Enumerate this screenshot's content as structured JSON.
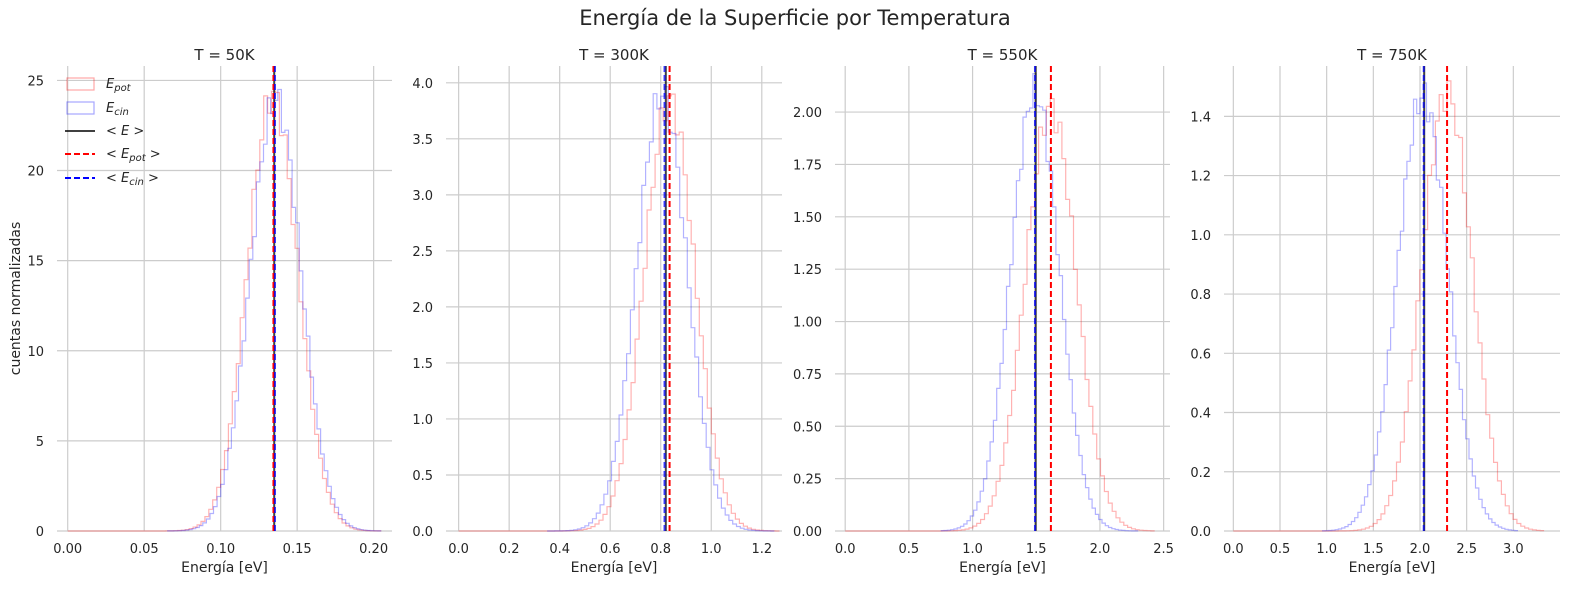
{
  "figure": {
    "suptitle": "Energía de la Superficie por Temperatura",
    "ylabel": "cuentas normalizadas",
    "colors": {
      "pot": "#ff0000",
      "cin": "#0000ff",
      "tot": "#000000",
      "grid": "#cccccc"
    }
  },
  "legend": {
    "placement": "top-left",
    "entries": [
      {
        "label": "E",
        "sub": "pot",
        "style": "pot-hist"
      },
      {
        "label": "E",
        "sub": "cin",
        "style": "cin-hist"
      },
      {
        "label": "< E >",
        "sub": "",
        "style": "tot-line"
      },
      {
        "label": "< E",
        "sub": "pot",
        "tail": " >",
        "style": "pot-line"
      },
      {
        "label": "< E",
        "sub": "cin",
        "tail": " >",
        "style": "cin-line"
      }
    ]
  },
  "chart_data": [
    {
      "type": "histogram",
      "title": "T = 50K",
      "xlabel": "Energía [eV]",
      "xlim": [
        -0.007,
        0.212
      ],
      "ylim": [
        0,
        25.8
      ],
      "xticks": [
        0.0,
        0.05,
        0.1,
        0.15,
        0.2
      ],
      "xtick_labels": [
        "0.00",
        "0.05",
        "0.10",
        "0.15",
        "0.20"
      ],
      "yticks": [
        0,
        5,
        10,
        15,
        20,
        25
      ],
      "ytick_labels": [
        "0",
        "5",
        "10",
        "15",
        "20",
        "25"
      ],
      "means": {
        "E": 0.135,
        "E_pot": 0.1345,
        "E_cin": 0.1355
      },
      "pot": {
        "mean": 0.134,
        "sd": 0.0165,
        "peak": 24.2,
        "min": 0.0,
        "max": 0.205,
        "bins": 80
      },
      "cin": {
        "mean": 0.136,
        "sd": 0.0165,
        "peak": 24.0,
        "min": 0.065,
        "max": 0.205,
        "bins": 60
      }
    },
    {
      "type": "histogram",
      "title": "T = 300K",
      "xlabel": "Energía [eV]",
      "xlim": [
        -0.05,
        1.28
      ],
      "ylim": [
        0,
        4.15
      ],
      "xticks": [
        0.0,
        0.2,
        0.4,
        0.6,
        0.8,
        1.0,
        1.2
      ],
      "xtick_labels": [
        "0.0",
        "0.2",
        "0.4",
        "0.6",
        "0.8",
        "1.0",
        "1.2"
      ],
      "yticks": [
        0,
        0.5,
        1.0,
        1.5,
        2.0,
        2.5,
        3.0,
        3.5,
        4.0
      ],
      "ytick_labels": [
        "0.0",
        "0.5",
        "1.0",
        "1.5",
        "2.0",
        "2.5",
        "3.0",
        "3.5",
        "4.0"
      ],
      "means": {
        "E": 0.82,
        "E_pot": 0.835,
        "E_cin": 0.815
      },
      "pot": {
        "mean": 0.835,
        "sd": 0.1,
        "peak": 3.85,
        "min": 0.0,
        "max": 1.27,
        "bins": 80
      },
      "cin": {
        "mean": 0.805,
        "sd": 0.1,
        "peak": 3.9,
        "min": 0.35,
        "max": 1.25,
        "bins": 60
      }
    },
    {
      "type": "histogram",
      "title": "T = 550K",
      "xlabel": "Energía [eV]",
      "xlim": [
        -0.08,
        2.55
      ],
      "ylim": [
        0,
        2.22
      ],
      "xticks": [
        0.0,
        0.5,
        1.0,
        1.5,
        2.0,
        2.5
      ],
      "xtick_labels": [
        "0.0",
        "0.5",
        "1.0",
        "1.5",
        "2.0",
        "2.5"
      ],
      "yticks": [
        0,
        0.25,
        0.5,
        0.75,
        1.0,
        1.25,
        1.5,
        1.75,
        2.0
      ],
      "ytick_labels": [
        "0.00",
        "0.25",
        "0.50",
        "0.75",
        "1.00",
        "1.25",
        "1.50",
        "1.75",
        "2.00"
      ],
      "means": {
        "E": 1.495,
        "E_pot": 1.615,
        "E_cin": 1.49
      },
      "pot": {
        "mean": 1.615,
        "sd": 0.2,
        "peak": 2.02,
        "min": 0.0,
        "max": 2.43,
        "bins": 80
      },
      "cin": {
        "mean": 1.49,
        "sd": 0.19,
        "peak": 2.1,
        "min": 0.75,
        "max": 2.3,
        "bins": 60
      }
    },
    {
      "type": "histogram",
      "title": "T = 750K",
      "xlabel": "Energía [eV]",
      "xlim": [
        -0.1,
        3.5
      ],
      "ylim": [
        0,
        1.57
      ],
      "xticks": [
        0.0,
        0.5,
        1.0,
        1.5,
        2.0,
        2.5,
        3.0
      ],
      "xtick_labels": [
        "0.0",
        "0.5",
        "1.0",
        "1.5",
        "2.0",
        "2.5",
        "3.0"
      ],
      "yticks": [
        0,
        0.2,
        0.4,
        0.6,
        0.8,
        1.0,
        1.2,
        1.4
      ],
      "ytick_labels": [
        "0.0",
        "0.2",
        "0.4",
        "0.6",
        "0.8",
        "1.0",
        "1.2",
        "1.4"
      ],
      "means": {
        "E": 2.045,
        "E_pot": 2.29,
        "E_cin": 2.04
      },
      "pot": {
        "mean": 2.29,
        "sd": 0.27,
        "peak": 1.48,
        "min": 0.0,
        "max": 3.33,
        "bins": 80
      },
      "cin": {
        "mean": 2.03,
        "sd": 0.27,
        "peak": 1.47,
        "min": 0.95,
        "max": 3.05,
        "bins": 60
      }
    }
  ]
}
